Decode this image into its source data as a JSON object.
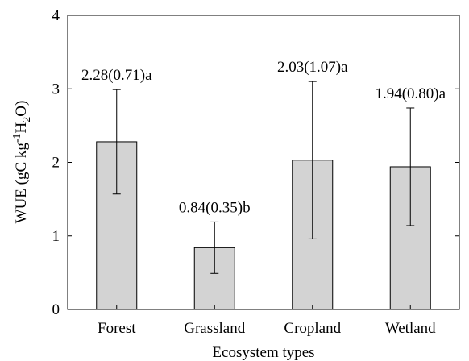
{
  "chart_data": {
    "type": "bar",
    "categories": [
      "Forest",
      "Grassland",
      "Cropland",
      "Wetland"
    ],
    "values": [
      2.28,
      0.84,
      2.03,
      1.94
    ],
    "errors": [
      0.71,
      0.35,
      1.07,
      0.8
    ],
    "annotations": [
      "2.28(0.71)a",
      "0.84(0.35)b",
      "2.03(1.07)a",
      "1.94(0.80)a"
    ],
    "xlabel": "Ecosystem types",
    "ylabel": "WUE (gC kg-1H2O)",
    "ylabel_parts": {
      "pre": "WUE (gC kg",
      "sup": "-1",
      "mid": "H",
      "sub": "2",
      "post": "O)"
    },
    "ylim": [
      0,
      4
    ],
    "yticks": [
      "0",
      "1",
      "2",
      "3",
      "4"
    ],
    "grid": false,
    "bar_color": "#d3d3d3"
  }
}
